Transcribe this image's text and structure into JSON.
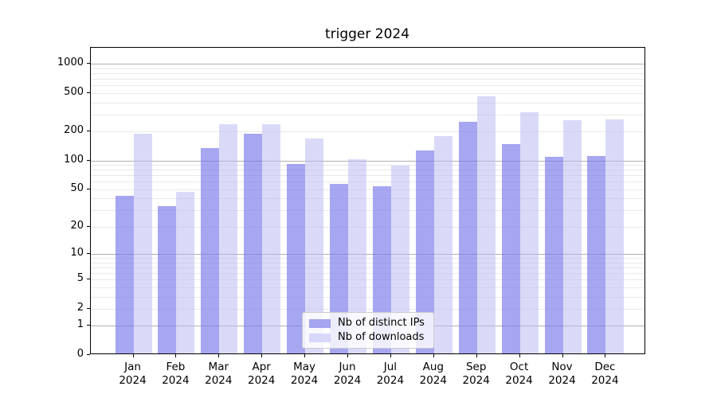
{
  "chart_data": {
    "type": "bar",
    "title": "trigger 2024",
    "categories": [
      "Jan",
      "Feb",
      "Mar",
      "Apr",
      "May",
      "Jun",
      "Jul",
      "Aug",
      "Sep",
      "Oct",
      "Nov",
      "Dec"
    ],
    "year_label": "2024",
    "series": [
      {
        "name": "Nb of distinct IPs",
        "color": "rgba(124,124,234,0.68)",
        "values": [
          43,
          33,
          134,
          190,
          92,
          57,
          54,
          127,
          253,
          147,
          109,
          111
        ]
      },
      {
        "name": "Nb of downloads",
        "color": "rgba(188,188,242,0.55)",
        "values": [
          190,
          47,
          236,
          236,
          169,
          104,
          89,
          179,
          462,
          315,
          260,
          265
        ]
      }
    ],
    "yscale": "log1p",
    "ylim": [
      0,
      1460
    ],
    "yticks": [
      0,
      1,
      2,
      5,
      10,
      20,
      50,
      100,
      200,
      500,
      1000
    ],
    "grid": {
      "major_ticks": [
        1,
        10,
        100,
        1000
      ],
      "major_color": "#b0b0b0",
      "minor_color": "#e9e9e9"
    },
    "legend_position": "lower-center"
  }
}
